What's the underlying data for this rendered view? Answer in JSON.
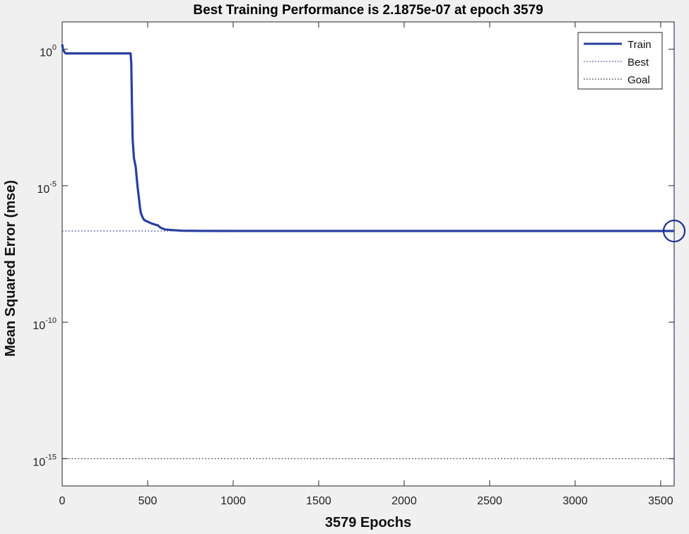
{
  "chart_data": {
    "type": "line",
    "title": "Best Training Performance is 2.1875e-07 at epoch 3579",
    "xlabel": "3579 Epochs",
    "ylabel": "Mean Squared Error  (mse)",
    "xlim": [
      0,
      3579
    ],
    "ylim": [
      1e-16,
      10
    ],
    "yscale": "log",
    "xticks": [
      0,
      500,
      1000,
      1500,
      2000,
      2500,
      3000,
      3500
    ],
    "yticks": [
      {
        "value": 1,
        "base": "10",
        "exp": "0"
      },
      {
        "value": 1e-05,
        "base": "10",
        "exp": "-5"
      },
      {
        "value": 1e-10,
        "base": "10",
        "exp": "-10"
      },
      {
        "value": 1e-15,
        "base": "10",
        "exp": "-15"
      }
    ],
    "grid": false,
    "legend_position": "top-right",
    "series": [
      {
        "name": "Train",
        "style": "solid",
        "color": "#2a3f9f",
        "x": [
          0,
          5,
          10,
          20,
          50,
          100,
          200,
          300,
          400,
          404,
          408,
          412,
          420,
          430,
          440,
          450,
          455,
          460,
          470,
          480,
          500,
          520,
          540,
          560,
          575,
          600,
          650,
          700,
          800,
          1000,
          1500,
          2000,
          2500,
          3000,
          3579
        ],
        "y": [
          1.5,
          1.0,
          0.85,
          0.7,
          0.7,
          0.7,
          0.7,
          0.7,
          0.7,
          0.3,
          0.01,
          0.0005,
          0.0001,
          5e-05,
          1e-05,
          3e-06,
          1.6e-06,
          1e-06,
          7e-07,
          5.5e-07,
          4.8e-07,
          4.2e-07,
          3.8e-07,
          3.5e-07,
          2.9e-07,
          2.5e-07,
          2.35e-07,
          2.25e-07,
          2.2e-07,
          2.19e-07,
          2.1875e-07,
          2.1875e-07,
          2.1875e-07,
          2.1875e-07,
          2.1875e-07
        ]
      },
      {
        "name": "Best",
        "style": "dotted",
        "color": "#2a3f9f",
        "y_value": 2.1875e-07,
        "x_value": 3579
      },
      {
        "name": "Goal",
        "style": "dotted",
        "color": "#222222",
        "y_value": 1e-15
      }
    ],
    "best_point": {
      "x": 3579,
      "y": 2.1875e-07
    }
  },
  "legend": {
    "items": [
      {
        "label": "Train"
      },
      {
        "label": "Best"
      },
      {
        "label": "Goal"
      }
    ]
  }
}
